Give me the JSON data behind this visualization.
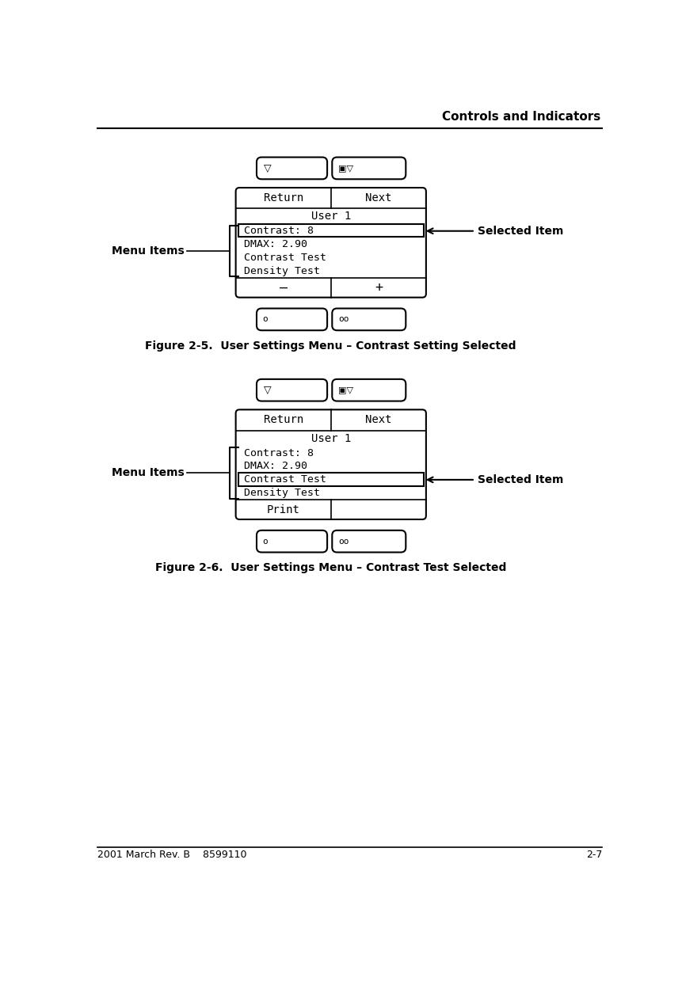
{
  "title_header": "Controls and Indicators",
  "footer_left": "2001 March Rev. B    8599110",
  "footer_right": "2-7",
  "fig1_caption": "Figure 2-5.  User Settings Menu – Contrast Setting Selected",
  "fig2_caption": "Figure 2-6.  User Settings Menu – Contrast Test Selected",
  "menu_items_label": "Menu Items",
  "selected_item_label": "Selected Item",
  "fig1_content_lines": [
    "Contrast: 8",
    "DMAX: 2.90",
    "Contrast Test",
    "Density Test"
  ],
  "fig1_selected_line": 0,
  "fig2_content_lines": [
    "Contrast: 8",
    "DMAX: 2.90",
    "Contrast Test",
    "Density Test"
  ],
  "fig2_selected_line": 2,
  "bg_color": "#ffffff"
}
